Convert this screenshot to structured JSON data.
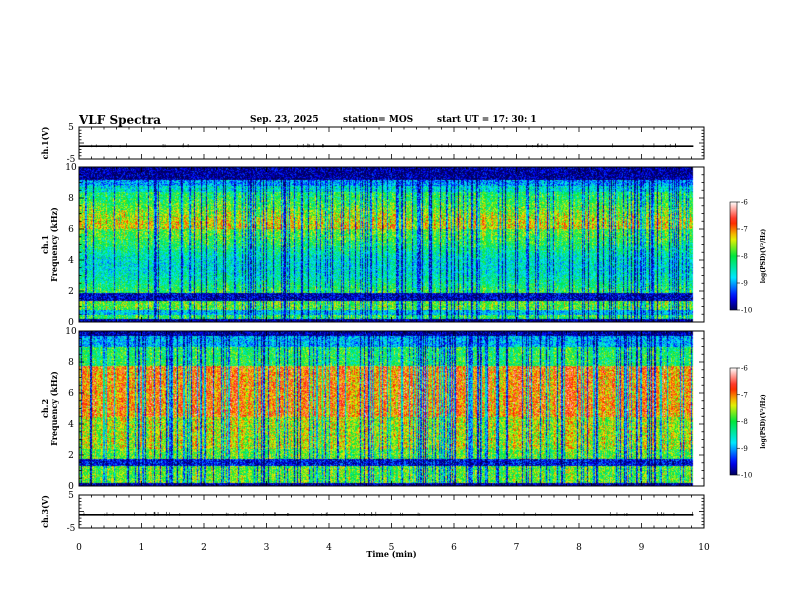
{
  "header": {
    "title": "VLF Spectra",
    "date": "Sep. 23, 2025",
    "station": "station= MOS",
    "start": "start  UT  =   17: 30: 1"
  },
  "chart_data": [
    {
      "type": "line",
      "name": "ch1-waveform",
      "ylabel": "ch.1(V)",
      "ylim": [
        -5,
        5
      ],
      "yticks": [
        "5",
        "-5"
      ],
      "level": -1
    },
    {
      "type": "heatmap",
      "name": "ch1-spectrogram",
      "ylabel": "ch.1\nFrequency (kHz)",
      "xlim": [
        0,
        10
      ],
      "ylim": [
        0,
        10
      ],
      "yticks": [
        "0",
        "2",
        "4",
        "6",
        "8",
        "10"
      ],
      "colorbar": {
        "label": "log(PSD)(V²/Hz)",
        "min": -10,
        "max": -6,
        "ticks": [
          "-6",
          "-7",
          "-8",
          "-9",
          "-10"
        ]
      },
      "data_end_min": 9.83
    },
    {
      "type": "heatmap",
      "name": "ch2-spectrogram",
      "ylabel": "ch.2\nFrequency (kHz)",
      "xlim": [
        0,
        10
      ],
      "ylim": [
        0,
        10
      ],
      "yticks": [
        "0",
        "2",
        "4",
        "6",
        "8",
        "10"
      ],
      "colorbar": {
        "label": "log(PSD)(V²/Hz)",
        "min": -10,
        "max": -6,
        "ticks": [
          "-6",
          "-7",
          "-8",
          "-9",
          "-10"
        ]
      },
      "data_end_min": 9.83
    },
    {
      "type": "line",
      "name": "ch3-waveform",
      "ylabel": "ch.3(V)",
      "xlabel": "Time (min)",
      "xlim": [
        0,
        10
      ],
      "xticks": [
        "0",
        "1",
        "2",
        "3",
        "4",
        "5",
        "6",
        "7",
        "8",
        "9",
        "10"
      ],
      "ylim": [
        -5,
        5
      ],
      "yticks": [
        "5",
        "-5"
      ],
      "level": -1
    }
  ],
  "colors": {
    "scale": [
      "#000080",
      "#0000ff",
      "#00ffff",
      "#00ff00",
      "#ffff00",
      "#ff0000",
      "#ffffff"
    ]
  }
}
